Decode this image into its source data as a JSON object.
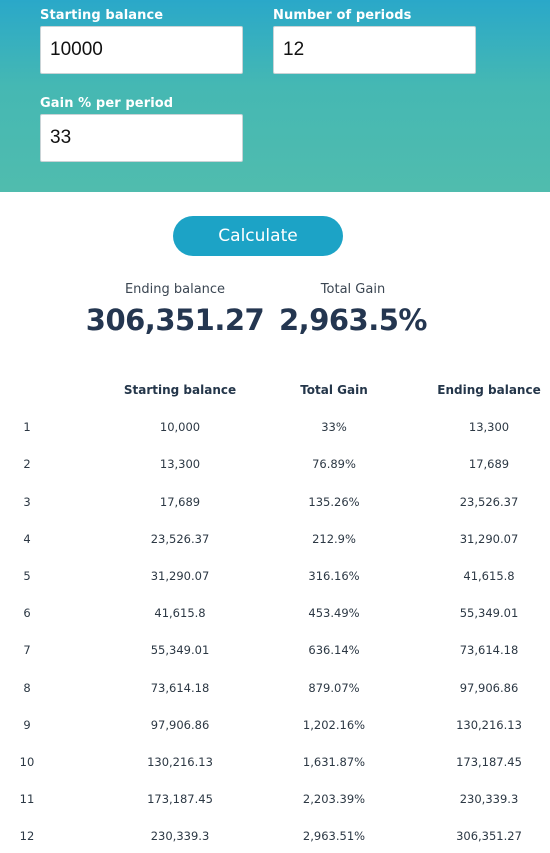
{
  "form": {
    "starting_balance": {
      "label": "Starting balance",
      "value": "10000"
    },
    "number_of_periods": {
      "label": "Number of periods",
      "value": "12"
    },
    "gain_per_period": {
      "label": "Gain % per period",
      "value": "33"
    }
  },
  "calculate_button": {
    "label": "Calculate"
  },
  "results": {
    "ending_balance": {
      "label": "Ending balance",
      "value": "306,351.27"
    },
    "total_gain": {
      "label": "Total Gain",
      "value": "2,963.5%"
    }
  },
  "table": {
    "headers": [
      "",
      "Starting balance",
      "Total Gain",
      "Ending balance"
    ],
    "rows": [
      [
        "1",
        "10,000",
        "33%",
        "13,300"
      ],
      [
        "2",
        "13,300",
        "76.89%",
        "17,689"
      ],
      [
        "3",
        "17,689",
        "135.26%",
        "23,526.37"
      ],
      [
        "4",
        "23,526.37",
        "212.9%",
        "31,290.07"
      ],
      [
        "5",
        "31,290.07",
        "316.16%",
        "41,615.8"
      ],
      [
        "6",
        "41,615.8",
        "453.49%",
        "55,349.01"
      ],
      [
        "7",
        "55,349.01",
        "636.14%",
        "73,614.18"
      ],
      [
        "8",
        "73,614.18",
        "879.07%",
        "97,906.86"
      ],
      [
        "9",
        "97,906.86",
        "1,202.16%",
        "130,216.13"
      ],
      [
        "10",
        "130,216.13",
        "1,631.87%",
        "173,187.45"
      ],
      [
        "11",
        "173,187.45",
        "2,203.39%",
        "230,339.3"
      ],
      [
        "12",
        "230,339.3",
        "2,963.51%",
        "306,351.27"
      ]
    ]
  }
}
